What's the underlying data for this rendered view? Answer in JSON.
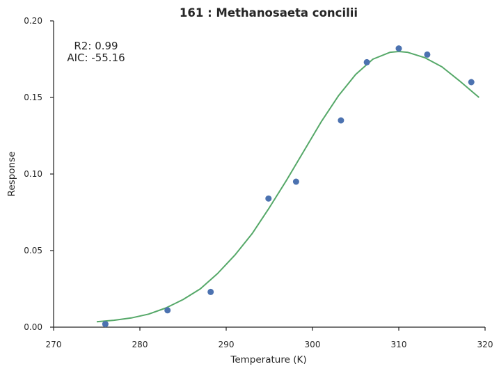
{
  "chart_data": {
    "type": "scatter",
    "title": "161 : Methanosaeta concilii",
    "xlabel": "Temperature (K)",
    "ylabel": "Response",
    "xlim": [
      270,
      320
    ],
    "ylim": [
      0.0,
      0.2
    ],
    "x_ticks": [
      270,
      280,
      290,
      300,
      310,
      320
    ],
    "x_tick_labels": [
      "270",
      "280",
      "290",
      "300",
      "310",
      "320"
    ],
    "y_ticks": [
      0.0,
      0.05,
      0.1,
      0.15,
      0.2
    ],
    "y_tick_labels": [
      "0.00",
      "0.05",
      "0.10",
      "0.15",
      "0.20"
    ],
    "grid": false,
    "annotations": [
      "R2: 0.99",
      "AIC: -55.16"
    ],
    "series": [
      {
        "type": "scatter",
        "color": "#4c72b0",
        "points": [
          [
            276.0,
            0.002
          ],
          [
            283.2,
            0.011
          ],
          [
            288.2,
            0.023
          ],
          [
            294.9,
            0.084
          ],
          [
            298.1,
            0.095
          ],
          [
            303.3,
            0.135
          ],
          [
            306.3,
            0.173
          ],
          [
            310.0,
            0.182
          ],
          [
            313.3,
            0.178
          ],
          [
            318.4,
            0.16
          ]
        ]
      },
      {
        "type": "line",
        "color": "#55a868",
        "points": [
          [
            275.0,
            0.0035
          ],
          [
            277.0,
            0.0045
          ],
          [
            279.0,
            0.006
          ],
          [
            281.0,
            0.0085
          ],
          [
            283.0,
            0.0125
          ],
          [
            285.0,
            0.018
          ],
          [
            287.0,
            0.025
          ],
          [
            289.0,
            0.035
          ],
          [
            291.0,
            0.047
          ],
          [
            293.0,
            0.061
          ],
          [
            295.0,
            0.078
          ],
          [
            297.0,
            0.096
          ],
          [
            299.0,
            0.115
          ],
          [
            301.0,
            0.134
          ],
          [
            303.0,
            0.151
          ],
          [
            305.0,
            0.165
          ],
          [
            307.0,
            0.175
          ],
          [
            309.0,
            0.1795
          ],
          [
            310.0,
            0.18
          ],
          [
            311.0,
            0.1795
          ],
          [
            313.0,
            0.176
          ],
          [
            315.0,
            0.17
          ],
          [
            317.0,
            0.161
          ],
          [
            319.3,
            0.15
          ]
        ]
      }
    ]
  }
}
